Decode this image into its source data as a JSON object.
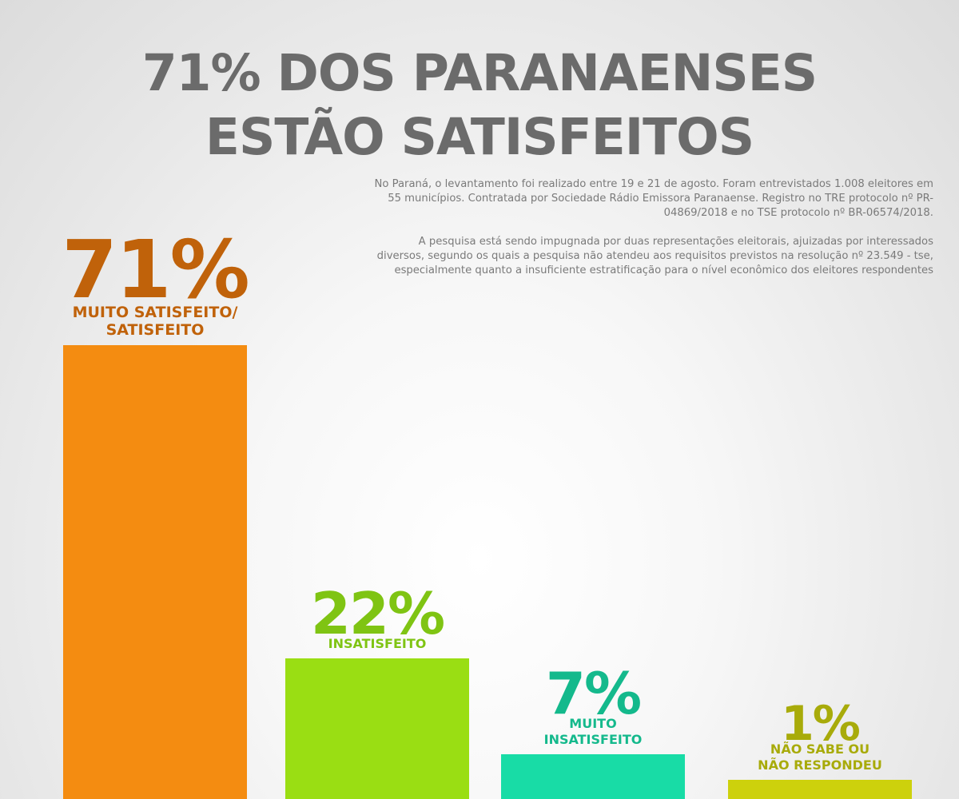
{
  "title": {
    "line1": "71% DOS PARANAENSES",
    "line2": "ESTÃO SATISFEITOS"
  },
  "notes": {
    "paragraph1": "No Paraná, o levantamento foi realizado entre 19 e 21 de agosto. Foram entrevistados 1.008 eleitores em 55 municípios. Contratada por Sociedade Rádio Emissora Paranaense. Registro no TRE protocolo nº PR-04869/2018 e no TSE protocolo nº BR-06574/2018.",
    "paragraph2": "A pesquisa está sendo impugnada por duas representações eleitorais, ajuizadas por interessados diversos, segundo os quais a pesquisa não atendeu aos requisitos previstos na resolução nº 23.549 - tse, especialmente quanto a insuficiente estratificação para o nível econômico dos eleitores respondentes"
  },
  "chart_data": {
    "type": "bar",
    "title": "71% DOS PARANAENSES ESTÃO SATISFEITOS",
    "categories": [
      "MUITO SATISFEITO/ SATISFEITO",
      "INSATISFEITO",
      "MUITO INSATISFEITO",
      "NÃO SABE OU NÃO RESPONDEU"
    ],
    "values": [
      71,
      22,
      7,
      1
    ],
    "value_labels": [
      "71%",
      "22%",
      "7%",
      "1%"
    ],
    "label_lines": [
      [
        "MUITO SATISFEITO/",
        "SATISFEITO"
      ],
      [
        "INSATISFEITO"
      ],
      [
        "MUITO",
        "INSATISFEITO"
      ],
      [
        "NÃO SABE OU",
        "NÃO RESPONDEU"
      ]
    ],
    "bar_colors": [
      "#f48c11",
      "#9ade13",
      "#18dca6",
      "#cdd10c"
    ],
    "label_colors": [
      "#c0620a",
      "#7fc413",
      "#14b98c",
      "#a8ab0a"
    ],
    "grid": false,
    "legend": "none"
  }
}
